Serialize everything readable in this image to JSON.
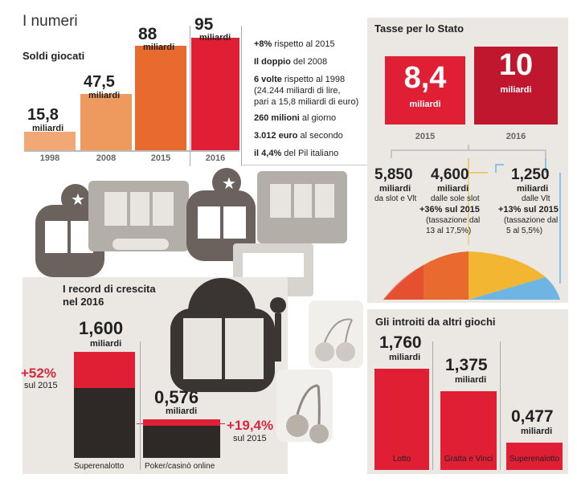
{
  "header": {
    "title": "I numeri"
  },
  "soldi": {
    "title": "Soldi giocati",
    "unit": "miliardi",
    "bars": [
      {
        "year": "1998",
        "value": "15,8",
        "num": 15.8,
        "color": "#f2a874"
      },
      {
        "year": "2008",
        "value": "47,5",
        "num": 47.5,
        "color": "#ee9a5e"
      },
      {
        "year": "2015",
        "value": "88",
        "num": 88,
        "color": "#e86a2e"
      },
      {
        "year": "2016",
        "value": "95",
        "num": 95,
        "color": "#e01f35"
      }
    ],
    "notes": [
      {
        "bold": "+8%",
        "rest": " rispetto al 2015"
      },
      {
        "bold": "Il doppio",
        "rest": " del 2008"
      },
      {
        "bold": "6 volte",
        "rest": " rispetto al 1998"
      },
      {
        "bold": "",
        "rest": "(24.244 miliardi di lire,"
      },
      {
        "bold": "",
        "rest": "pari a 15,8 miliardi di euro)"
      },
      {
        "bold": "260 milioni",
        "rest": " al giorno"
      },
      {
        "bold": "3.012 euro",
        "rest": " al secondo"
      },
      {
        "bold": "il 4,4%",
        "rest": " del Pil italiano"
      }
    ]
  },
  "tasse": {
    "title": "Tasse per lo Stato",
    "unit": "miliardi",
    "bars": [
      {
        "year": "2015",
        "value": "8,4",
        "color": "#e01f35"
      },
      {
        "year": "2016",
        "value": "10",
        "color": "#c0172e"
      }
    ],
    "breakdown": [
      {
        "value": "5,850",
        "unit": "miliardi",
        "desc1": "da slot e Vlt",
        "desc2": "",
        "desc3": "",
        "desc4": ""
      },
      {
        "value": "4,600",
        "unit": "miliardi",
        "desc1": "dalle sole slot",
        "desc2": "+36% sul 2015",
        "desc3": "(tassazione dal",
        "desc4": "13 al 17,5%)"
      },
      {
        "value": "1,250",
        "unit": "miliardi",
        "desc1": "dalle Vlt",
        "desc2": "+13% sul 2015",
        "desc3": "(tassazione dal",
        "desc4": "5 al 5,5%)"
      }
    ]
  },
  "record": {
    "title1": "I record di crescita",
    "title2": "nel 2016",
    "unit": "miliardi",
    "items": [
      {
        "label": "Superenalotto",
        "value": "1,600",
        "pct": "+52%",
        "pct_sub": "sul 2015",
        "total": 1.6,
        "growth": 0.52
      },
      {
        "label": "Poker/casinò online",
        "value": "0,576",
        "pct": "+19,4%",
        "pct_sub": "sul 2015",
        "total": 0.576,
        "growth": 0.194
      }
    ]
  },
  "altri": {
    "title": "Gli introiti da altri giochi",
    "unit": "miliardi",
    "items": [
      {
        "label": "Lotto",
        "value": "1,760",
        "num": 1.76
      },
      {
        "label": "Gratta e Vinci",
        "value": "1,375",
        "num": 1.375
      },
      {
        "label": "Superenalotto",
        "value": "0,477",
        "num": 0.477
      }
    ]
  },
  "chart_data": [
    {
      "type": "bar",
      "title": "Soldi giocati",
      "categories": [
        "1998",
        "2008",
        "2015",
        "2016"
      ],
      "values": [
        15.8,
        47.5,
        88,
        95
      ],
      "ylabel": "miliardi"
    },
    {
      "type": "bar",
      "title": "Tasse per lo Stato",
      "categories": [
        "2015",
        "2016"
      ],
      "values": [
        8.4,
        10
      ],
      "ylabel": "miliardi"
    },
    {
      "type": "bar",
      "title": "I record di crescita nel 2016",
      "categories": [
        "Superenalotto",
        "Poker/casinò online"
      ],
      "values": [
        1.6,
        0.576
      ],
      "growth_pct": [
        52,
        19.4
      ],
      "ylabel": "miliardi"
    },
    {
      "type": "bar",
      "title": "Gli introiti da altri giochi",
      "categories": [
        "Lotto",
        "Gratta e Vinci",
        "Superenalotto"
      ],
      "values": [
        1.76,
        1.375,
        0.477
      ],
      "ylabel": "miliardi"
    }
  ]
}
